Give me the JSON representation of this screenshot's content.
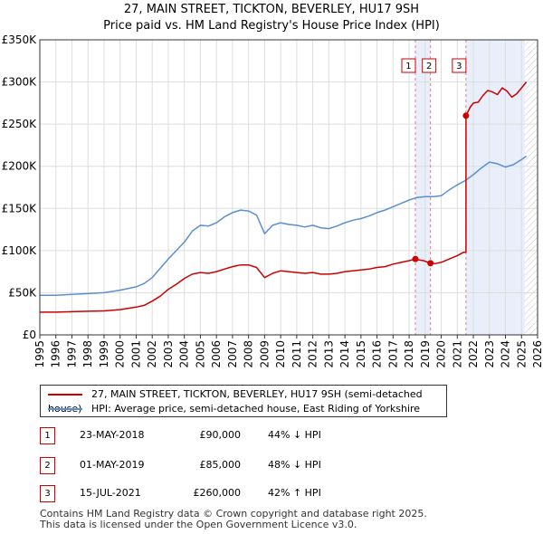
{
  "header": {
    "title_line1": "27, MAIN STREET, TICKTON, BEVERLEY, HU17 9SH",
    "title_line2": "Price paid vs. HM Land Registry's House Price Index (HPI)"
  },
  "chart_data": {
    "type": "line",
    "xlim": [
      1995,
      2026
    ],
    "ylim": [
      0,
      350000
    ],
    "y_ticks": [
      {
        "value": 0,
        "label": "£0"
      },
      {
        "value": 50000,
        "label": "£50K"
      },
      {
        "value": 100000,
        "label": "£100K"
      },
      {
        "value": 150000,
        "label": "£150K"
      },
      {
        "value": 200000,
        "label": "£200K"
      },
      {
        "value": 250000,
        "label": "£250K"
      },
      {
        "value": 300000,
        "label": "£300K"
      },
      {
        "value": 350000,
        "label": "£350K"
      }
    ],
    "x_ticks": [
      "1995",
      "1996",
      "1997",
      "1998",
      "1999",
      "2000",
      "2001",
      "2002",
      "2003",
      "2004",
      "2005",
      "2006",
      "2007",
      "2008",
      "2009",
      "2010",
      "2011",
      "2012",
      "2013",
      "2014",
      "2015",
      "2016",
      "2017",
      "2018",
      "2019",
      "2020",
      "2021",
      "2022",
      "2023",
      "2024",
      "2025",
      "2026"
    ],
    "colors": {
      "price": "#cc0000",
      "hpi": "#5b8fd0",
      "shade": "#e8eefa",
      "grid": "#dddddd",
      "vline": "#e08080",
      "future_hatch": "#cccccc"
    },
    "series": [
      {
        "name": "27, MAIN STREET, TICKTON, BEVERLEY, HU17 9SH (semi-detached house)",
        "color": "#cc0000",
        "points": [
          [
            1995.0,
            27000
          ],
          [
            1996.0,
            27000
          ],
          [
            1997.0,
            27500
          ],
          [
            1998.0,
            28000
          ],
          [
            1999.0,
            28500
          ],
          [
            2000.0,
            30000
          ],
          [
            2001.0,
            33000
          ],
          [
            2001.5,
            35000
          ],
          [
            2002.0,
            40000
          ],
          [
            2002.5,
            46000
          ],
          [
            2003.0,
            54000
          ],
          [
            2003.5,
            60000
          ],
          [
            2004.0,
            67000
          ],
          [
            2004.5,
            72000
          ],
          [
            2005.0,
            74000
          ],
          [
            2005.5,
            73000
          ],
          [
            2006.0,
            75000
          ],
          [
            2006.5,
            78000
          ],
          [
            2007.0,
            81000
          ],
          [
            2007.5,
            83000
          ],
          [
            2008.0,
            83000
          ],
          [
            2008.5,
            80000
          ],
          [
            2009.0,
            68000
          ],
          [
            2009.5,
            73000
          ],
          [
            2010.0,
            76000
          ],
          [
            2010.5,
            75000
          ],
          [
            2011.0,
            74000
          ],
          [
            2011.5,
            73000
          ],
          [
            2012.0,
            74000
          ],
          [
            2012.5,
            72000
          ],
          [
            2013.0,
            72000
          ],
          [
            2013.5,
            73000
          ],
          [
            2014.0,
            75000
          ],
          [
            2014.5,
            76000
          ],
          [
            2015.0,
            77000
          ],
          [
            2015.5,
            78000
          ],
          [
            2016.0,
            80000
          ],
          [
            2016.5,
            81000
          ],
          [
            2017.0,
            84000
          ],
          [
            2017.5,
            86000
          ],
          [
            2018.0,
            88000
          ],
          [
            2018.39,
            90000
          ],
          [
            2018.6,
            89000
          ],
          [
            2018.9,
            88000
          ],
          [
            2019.33,
            85000
          ],
          [
            2019.6,
            84500
          ],
          [
            2020.0,
            86000
          ],
          [
            2020.5,
            90000
          ],
          [
            2021.0,
            94000
          ],
          [
            2021.4,
            98000
          ],
          [
            2021.54,
            98000
          ],
          [
            2021.54,
            260000
          ],
          [
            2021.8,
            270000
          ],
          [
            2022.0,
            275000
          ],
          [
            2022.3,
            276000
          ],
          [
            2022.6,
            284000
          ],
          [
            2022.9,
            290000
          ],
          [
            2023.2,
            288000
          ],
          [
            2023.5,
            285000
          ],
          [
            2023.8,
            293000
          ],
          [
            2024.1,
            289000
          ],
          [
            2024.4,
            282000
          ],
          [
            2024.7,
            286000
          ],
          [
            2025.0,
            293000
          ],
          [
            2025.3,
            300000
          ]
        ]
      },
      {
        "name": "HPI: Average price, semi-detached house, East Riding of Yorkshire",
        "color": "#5b8fd0",
        "points": [
          [
            1995.0,
            47000
          ],
          [
            1996.0,
            47000
          ],
          [
            1997.0,
            48000
          ],
          [
            1998.0,
            49000
          ],
          [
            1999.0,
            50000
          ],
          [
            2000.0,
            53000
          ],
          [
            2001.0,
            57000
          ],
          [
            2001.5,
            61000
          ],
          [
            2002.0,
            68000
          ],
          [
            2002.5,
            79000
          ],
          [
            2003.0,
            90000
          ],
          [
            2003.5,
            100000
          ],
          [
            2004.0,
            110000
          ],
          [
            2004.5,
            123000
          ],
          [
            2005.0,
            130000
          ],
          [
            2005.5,
            129000
          ],
          [
            2006.0,
            133000
          ],
          [
            2006.5,
            140000
          ],
          [
            2007.0,
            145000
          ],
          [
            2007.5,
            148000
          ],
          [
            2008.0,
            147000
          ],
          [
            2008.5,
            142000
          ],
          [
            2009.0,
            120000
          ],
          [
            2009.5,
            130000
          ],
          [
            2010.0,
            133000
          ],
          [
            2010.5,
            131000
          ],
          [
            2011.0,
            130000
          ],
          [
            2011.5,
            128000
          ],
          [
            2012.0,
            130000
          ],
          [
            2012.5,
            127000
          ],
          [
            2013.0,
            126000
          ],
          [
            2013.5,
            129000
          ],
          [
            2014.0,
            133000
          ],
          [
            2014.5,
            136000
          ],
          [
            2015.0,
            138000
          ],
          [
            2015.5,
            141000
          ],
          [
            2016.0,
            145000
          ],
          [
            2016.5,
            148000
          ],
          [
            2017.0,
            152000
          ],
          [
            2017.5,
            156000
          ],
          [
            2018.0,
            160000
          ],
          [
            2018.5,
            163000
          ],
          [
            2019.0,
            164000
          ],
          [
            2019.5,
            164000
          ],
          [
            2020.0,
            165000
          ],
          [
            2020.5,
            172000
          ],
          [
            2021.0,
            178000
          ],
          [
            2021.5,
            183000
          ],
          [
            2022.0,
            190000
          ],
          [
            2022.5,
            198000
          ],
          [
            2023.0,
            205000
          ],
          [
            2023.5,
            203000
          ],
          [
            2024.0,
            199000
          ],
          [
            2024.5,
            202000
          ],
          [
            2025.0,
            208000
          ],
          [
            2025.3,
            212000
          ]
        ]
      }
    ],
    "sales": [
      {
        "num": "1",
        "x": 2018.39,
        "price": 90000
      },
      {
        "num": "2",
        "x": 2019.33,
        "price": 85000
      },
      {
        "num": "3",
        "x": 2021.54,
        "price": 260000
      }
    ],
    "shaded_regions": [
      [
        2018.39,
        2019.33
      ],
      [
        2021.54,
        2025.2
      ]
    ],
    "future_start": 2025.2
  },
  "legend": {
    "items": [
      {
        "label": "27, MAIN STREET, TICKTON, BEVERLEY, HU17 9SH (semi-detached house)",
        "color": "#cc0000"
      },
      {
        "label": "HPI: Average price, semi-detached house, East Riding of Yorkshire",
        "color": "#5b8fd0"
      }
    ]
  },
  "table": {
    "rows": [
      {
        "num": "1",
        "date": "23-MAY-2018",
        "price": "£90,000",
        "hpi": "44% ↓ HPI"
      },
      {
        "num": "2",
        "date": "01-MAY-2019",
        "price": "£85,000",
        "hpi": "48% ↓ HPI"
      },
      {
        "num": "3",
        "date": "15-JUL-2021",
        "price": "£260,000",
        "hpi": "42% ↑ HPI"
      }
    ]
  },
  "footer": {
    "line1": "Contains HM Land Registry data © Crown copyright and database right 2025.",
    "line2": "This data is licensed under the Open Government Licence v3.0."
  }
}
